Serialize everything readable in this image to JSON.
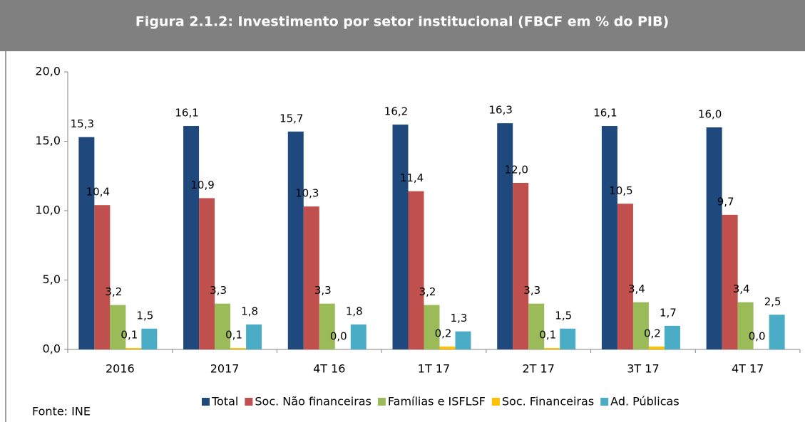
{
  "chart_data": {
    "type": "bar",
    "title": "Figura 2.1.2: Investimento por setor institucional (FBCF em % do PIB)",
    "source": "Fonte: INE",
    "categories": [
      "2016",
      "2017",
      "4T 16",
      "1T 17",
      "2T 17",
      "3T 17",
      "4T 17"
    ],
    "series": [
      {
        "name": "Total",
        "color": "#1f497d",
        "values": [
          15.3,
          16.1,
          15.7,
          16.2,
          16.3,
          16.1,
          16.0
        ],
        "value_labels": [
          "15,3",
          "16,1",
          "15,7",
          "16,2",
          "16,3",
          "16,1",
          "16,0"
        ]
      },
      {
        "name": "Soc. Não financeiras",
        "color": "#c0504d",
        "values": [
          10.4,
          10.9,
          10.3,
          11.4,
          12.0,
          10.5,
          9.7
        ],
        "value_labels": [
          "10,4",
          "10,9",
          "10,3",
          "11,4",
          "12,0",
          "10,5",
          "9,7"
        ]
      },
      {
        "name": "Famílias e ISFLSF",
        "color": "#9bbb59",
        "values": [
          3.2,
          3.3,
          3.3,
          3.2,
          3.3,
          3.4,
          3.4
        ],
        "value_labels": [
          "3,2",
          "3,3",
          "3,3",
          "3,2",
          "3,3",
          "3,4",
          "3,4"
        ]
      },
      {
        "name": "Soc. Financeiras",
        "color": "#ffc000",
        "values": [
          0.1,
          0.1,
          0.0,
          0.2,
          0.1,
          0.2,
          0.0
        ],
        "value_labels": [
          "0,1",
          "0,1",
          "0,0",
          "0,2",
          "0,1",
          "0,2",
          "0,0"
        ]
      },
      {
        "name": "Ad. Públicas",
        "color": "#4bacc6",
        "values": [
          1.5,
          1.8,
          1.8,
          1.3,
          1.5,
          1.7,
          2.5
        ],
        "value_labels": [
          "1,5",
          "1,8",
          "1,8",
          "1,3",
          "1,5",
          "1,7",
          "2,5"
        ]
      }
    ],
    "ylim": [
      0,
      20
    ],
    "yticks": [
      {
        "value": 0,
        "label": "0,0"
      },
      {
        "value": 5,
        "label": "5,0"
      },
      {
        "value": 10,
        "label": "10,0"
      },
      {
        "value": 15,
        "label": "15,0"
      },
      {
        "value": 20,
        "label": "20,0"
      }
    ],
    "legend": "bottom"
  }
}
